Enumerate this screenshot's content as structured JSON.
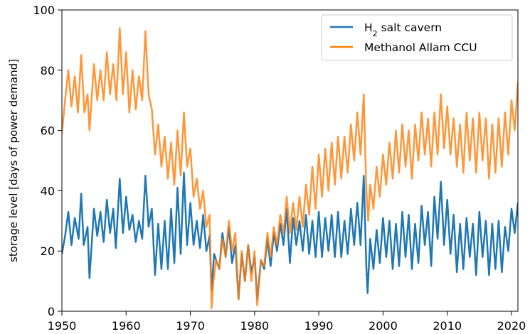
{
  "chart_data": {
    "type": "line",
    "title": "",
    "xlabel": "",
    "ylabel": "storage level [days of power demand]",
    "xlim": [
      1950,
      2021
    ],
    "ylim": [
      0,
      100
    ],
    "xticks": [
      1950,
      1960,
      1970,
      1980,
      1990,
      2000,
      2010,
      2020
    ],
    "yticks": [
      0,
      20,
      40,
      60,
      80,
      100
    ],
    "xtick_labels": [
      "1950",
      "1960",
      "1970",
      "1980",
      "1990",
      "2000",
      "2010",
      "2020"
    ],
    "ytick_labels": [
      "0",
      "20",
      "40",
      "60",
      "80",
      "100"
    ],
    "grid": false,
    "legend_position": "top-right",
    "series": [
      {
        "name_base": "H",
        "name_sub": "2",
        "name_rest": " salt cavern",
        "color": "#1f77b4",
        "points": [
          [
            1950.0,
            19
          ],
          [
            1950.5,
            25
          ],
          [
            1951.0,
            33
          ],
          [
            1951.5,
            22
          ],
          [
            1952.0,
            31
          ],
          [
            1952.6,
            24
          ],
          [
            1953.0,
            39
          ],
          [
            1953.4,
            22
          ],
          [
            1954.0,
            28
          ],
          [
            1954.3,
            11
          ],
          [
            1955.0,
            34
          ],
          [
            1955.5,
            25
          ],
          [
            1956.0,
            33
          ],
          [
            1956.5,
            23
          ],
          [
            1957.0,
            37
          ],
          [
            1957.5,
            26
          ],
          [
            1958.0,
            34
          ],
          [
            1958.4,
            21
          ],
          [
            1959.0,
            44
          ],
          [
            1959.5,
            26
          ],
          [
            1960.0,
            38
          ],
          [
            1960.5,
            27
          ],
          [
            1961.0,
            32
          ],
          [
            1961.5,
            23
          ],
          [
            1962.0,
            30
          ],
          [
            1962.5,
            24
          ],
          [
            1963.0,
            45
          ],
          [
            1963.5,
            28
          ],
          [
            1964.0,
            34
          ],
          [
            1964.5,
            12
          ],
          [
            1965.0,
            29
          ],
          [
            1965.5,
            14
          ],
          [
            1966.0,
            30
          ],
          [
            1966.5,
            14
          ],
          [
            1967.0,
            34
          ],
          [
            1967.5,
            16
          ],
          [
            1968.0,
            41
          ],
          [
            1968.5,
            19
          ],
          [
            1969.0,
            46
          ],
          [
            1969.5,
            22
          ],
          [
            1970.0,
            36
          ],
          [
            1970.5,
            22
          ],
          [
            1971.0,
            30
          ],
          [
            1971.5,
            21
          ],
          [
            1972.0,
            32
          ],
          [
            1972.5,
            20
          ],
          [
            1973.0,
            25
          ],
          [
            1973.3,
            7
          ],
          [
            1973.7,
            19
          ],
          [
            1974.5,
            14
          ],
          [
            1975.0,
            26
          ],
          [
            1975.5,
            18
          ],
          [
            1976.0,
            28
          ],
          [
            1976.5,
            16
          ],
          [
            1977.0,
            22
          ],
          [
            1977.5,
            4
          ],
          [
            1978.0,
            19
          ],
          [
            1978.5,
            10
          ],
          [
            1979.0,
            22
          ],
          [
            1979.5,
            13
          ],
          [
            1980.0,
            18
          ],
          [
            1980.4,
            4
          ],
          [
            1981.0,
            17
          ],
          [
            1981.5,
            14
          ],
          [
            1982.0,
            24
          ],
          [
            1982.5,
            15
          ],
          [
            1983.0,
            26
          ],
          [
            1983.5,
            20
          ],
          [
            1984.0,
            29
          ],
          [
            1984.5,
            22
          ],
          [
            1985.0,
            34
          ],
          [
            1985.5,
            16
          ],
          [
            1986.0,
            31
          ],
          [
            1986.5,
            22
          ],
          [
            1987.0,
            30
          ],
          [
            1987.5,
            20
          ],
          [
            1988.0,
            32
          ],
          [
            1988.5,
            19
          ],
          [
            1989.0,
            30
          ],
          [
            1989.5,
            18
          ],
          [
            1990.0,
            33
          ],
          [
            1990.5,
            18
          ],
          [
            1991.0,
            31
          ],
          [
            1991.5,
            20
          ],
          [
            1992.0,
            32
          ],
          [
            1992.5,
            18
          ],
          [
            1993.0,
            33
          ],
          [
            1993.5,
            18
          ],
          [
            1994.0,
            30
          ],
          [
            1994.5,
            19
          ],
          [
            1995.0,
            34
          ],
          [
            1995.5,
            22
          ],
          [
            1996.0,
            36
          ],
          [
            1996.5,
            22
          ],
          [
            1997.0,
            45
          ],
          [
            1997.4,
            15
          ],
          [
            1997.6,
            6
          ],
          [
            1998.0,
            24
          ],
          [
            1998.5,
            14
          ],
          [
            1999.0,
            27
          ],
          [
            1999.5,
            16
          ],
          [
            2000.0,
            31
          ],
          [
            2000.5,
            18
          ],
          [
            2001.0,
            30
          ],
          [
            2001.5,
            14
          ],
          [
            2002.0,
            29
          ],
          [
            2002.5,
            15
          ],
          [
            2003.0,
            33
          ],
          [
            2003.5,
            18
          ],
          [
            2004.0,
            32
          ],
          [
            2004.5,
            14
          ],
          [
            2005.0,
            29
          ],
          [
            2005.5,
            16
          ],
          [
            2006.0,
            35
          ],
          [
            2006.5,
            22
          ],
          [
            2007.0,
            33
          ],
          [
            2007.5,
            15
          ],
          [
            2008.0,
            38
          ],
          [
            2008.5,
            24
          ],
          [
            2009.0,
            43
          ],
          [
            2009.5,
            22
          ],
          [
            2010.0,
            37
          ],
          [
            2010.5,
            19
          ],
          [
            2011.0,
            32
          ],
          [
            2011.5,
            13
          ],
          [
            2012.0,
            29
          ],
          [
            2012.5,
            14
          ],
          [
            2013.0,
            31
          ],
          [
            2013.5,
            18
          ],
          [
            2014.0,
            29
          ],
          [
            2014.5,
            12
          ],
          [
            2015.0,
            33
          ],
          [
            2015.5,
            18
          ],
          [
            2016.0,
            30
          ],
          [
            2016.5,
            12
          ],
          [
            2017.0,
            29
          ],
          [
            2017.5,
            14
          ],
          [
            2018.0,
            30
          ],
          [
            2018.5,
            13
          ],
          [
            2019.0,
            28
          ],
          [
            2019.5,
            20
          ],
          [
            2020.0,
            34
          ],
          [
            2020.5,
            26
          ],
          [
            2021.0,
            36
          ]
        ]
      },
      {
        "name": "Methanol Allam CCU",
        "color": "#ff7f0e",
        "points": [
          [
            1950.0,
            59
          ],
          [
            1950.5,
            70
          ],
          [
            1951.0,
            80
          ],
          [
            1951.5,
            68
          ],
          [
            1952.0,
            78
          ],
          [
            1952.5,
            66
          ],
          [
            1953.0,
            85
          ],
          [
            1953.5,
            66
          ],
          [
            1954.0,
            72
          ],
          [
            1954.3,
            60
          ],
          [
            1955.0,
            82
          ],
          [
            1955.5,
            70
          ],
          [
            1956.0,
            80
          ],
          [
            1956.5,
            70
          ],
          [
            1957.0,
            86
          ],
          [
            1957.5,
            72
          ],
          [
            1958.0,
            82
          ],
          [
            1958.5,
            70
          ],
          [
            1959.0,
            94
          ],
          [
            1959.5,
            72
          ],
          [
            1960.0,
            86
          ],
          [
            1960.5,
            66
          ],
          [
            1961.0,
            80
          ],
          [
            1961.5,
            67
          ],
          [
            1962.0,
            78
          ],
          [
            1962.5,
            70
          ],
          [
            1963.0,
            93
          ],
          [
            1963.5,
            72
          ],
          [
            1964.0,
            67
          ],
          [
            1964.5,
            52
          ],
          [
            1965.0,
            62
          ],
          [
            1965.5,
            48
          ],
          [
            1966.0,
            58
          ],
          [
            1966.5,
            44
          ],
          [
            1967.0,
            56
          ],
          [
            1967.5,
            42
          ],
          [
            1968.0,
            60
          ],
          [
            1968.5,
            45
          ],
          [
            1969.0,
            66
          ],
          [
            1969.5,
            48
          ],
          [
            1970.0,
            54
          ],
          [
            1970.5,
            38
          ],
          [
            1971.0,
            44
          ],
          [
            1971.5,
            34
          ],
          [
            1972.0,
            40
          ],
          [
            1972.5,
            28
          ],
          [
            1973.0,
            32
          ],
          [
            1973.3,
            1
          ],
          [
            1973.6,
            10
          ],
          [
            1974.0,
            17
          ],
          [
            1974.5,
            14
          ],
          [
            1975.0,
            24
          ],
          [
            1975.5,
            18
          ],
          [
            1976.0,
            30
          ],
          [
            1976.5,
            20
          ],
          [
            1977.0,
            26
          ],
          [
            1977.5,
            4
          ],
          [
            1978.0,
            20
          ],
          [
            1978.5,
            10
          ],
          [
            1979.0,
            22
          ],
          [
            1979.5,
            10
          ],
          [
            1980.0,
            20
          ],
          [
            1980.4,
            2
          ],
          [
            1981.0,
            17
          ],
          [
            1981.5,
            15
          ],
          [
            1982.0,
            26
          ],
          [
            1982.5,
            18
          ],
          [
            1983.0,
            28
          ],
          [
            1983.5,
            22
          ],
          [
            1984.0,
            32
          ],
          [
            1984.5,
            26
          ],
          [
            1985.0,
            38
          ],
          [
            1985.5,
            26
          ],
          [
            1986.0,
            36
          ],
          [
            1986.5,
            27
          ],
          [
            1987.0,
            38
          ],
          [
            1987.5,
            28
          ],
          [
            1988.0,
            42
          ],
          [
            1988.5,
            32
          ],
          [
            1989.0,
            48
          ],
          [
            1989.5,
            34
          ],
          [
            1990.0,
            52
          ],
          [
            1990.5,
            38
          ],
          [
            1991.0,
            54
          ],
          [
            1991.5,
            40
          ],
          [
            1992.0,
            56
          ],
          [
            1992.5,
            42
          ],
          [
            1993.0,
            58
          ],
          [
            1993.5,
            44
          ],
          [
            1994.0,
            58
          ],
          [
            1994.5,
            46
          ],
          [
            1995.0,
            62
          ],
          [
            1995.5,
            50
          ],
          [
            1996.0,
            66
          ],
          [
            1996.5,
            52
          ],
          [
            1997.0,
            72
          ],
          [
            1997.4,
            40
          ],
          [
            1997.7,
            30
          ],
          [
            1998.0,
            42
          ],
          [
            1998.5,
            34
          ],
          [
            1999.0,
            48
          ],
          [
            1999.5,
            38
          ],
          [
            2000.0,
            52
          ],
          [
            2000.5,
            42
          ],
          [
            2001.0,
            56
          ],
          [
            2001.5,
            44
          ],
          [
            2002.0,
            60
          ],
          [
            2002.5,
            46
          ],
          [
            2003.0,
            62
          ],
          [
            2003.5,
            48
          ],
          [
            2004.0,
            60
          ],
          [
            2004.5,
            44
          ],
          [
            2005.0,
            62
          ],
          [
            2005.5,
            50
          ],
          [
            2006.0,
            66
          ],
          [
            2006.5,
            52
          ],
          [
            2007.0,
            64
          ],
          [
            2007.5,
            48
          ],
          [
            2008.0,
            66
          ],
          [
            2008.5,
            52
          ],
          [
            2009.0,
            72
          ],
          [
            2009.5,
            54
          ],
          [
            2010.0,
            68
          ],
          [
            2010.5,
            52
          ],
          [
            2011.0,
            64
          ],
          [
            2011.5,
            48
          ],
          [
            2012.0,
            62
          ],
          [
            2012.5,
            46
          ],
          [
            2013.0,
            66
          ],
          [
            2013.5,
            50
          ],
          [
            2014.0,
            64
          ],
          [
            2014.5,
            46
          ],
          [
            2015.0,
            66
          ],
          [
            2015.5,
            50
          ],
          [
            2016.0,
            64
          ],
          [
            2016.5,
            44
          ],
          [
            2017.0,
            62
          ],
          [
            2017.5,
            46
          ],
          [
            2018.0,
            64
          ],
          [
            2018.5,
            48
          ],
          [
            2019.0,
            66
          ],
          [
            2019.5,
            52
          ],
          [
            2020.0,
            70
          ],
          [
            2020.5,
            60
          ],
          [
            2021.0,
            76
          ]
        ]
      }
    ]
  }
}
